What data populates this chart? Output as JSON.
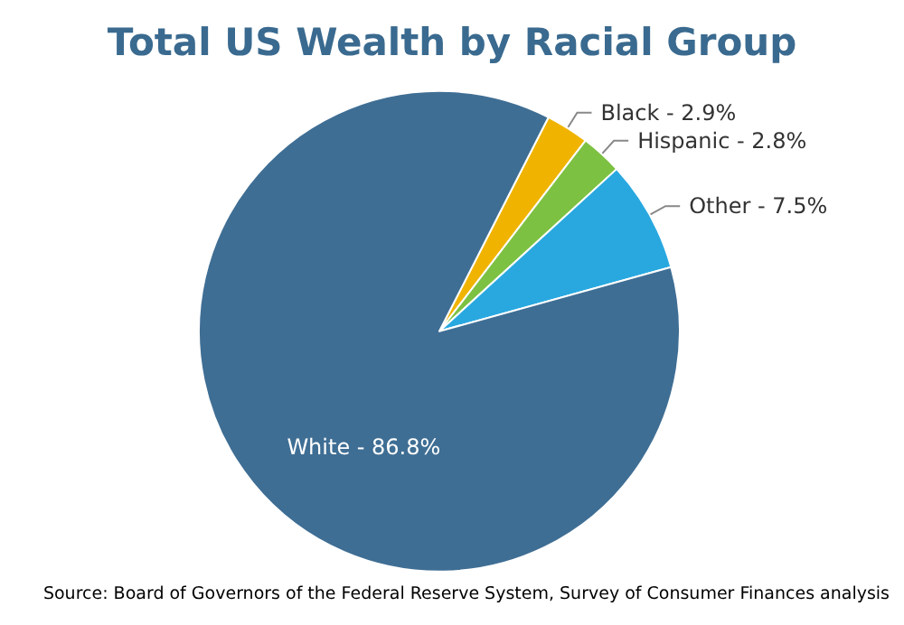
{
  "chart_data": {
    "type": "pie",
    "title": "Total US Wealth by Racial Group",
    "categories": [
      "Black",
      "Hispanic",
      "Other",
      "White"
    ],
    "values": [
      2.9,
      2.8,
      7.5,
      86.8
    ],
    "value_labels": [
      "2.9%",
      "2.8%",
      "7.5%",
      "86.8%"
    ],
    "colors": [
      "#f0b400",
      "#7dc142",
      "#29a8e0",
      "#3f6e94"
    ],
    "annotations": [
      "Source: Board of Governors of the Federal Reserve System, Survey of Consumer Finances analysis"
    ],
    "legend": false
  }
}
